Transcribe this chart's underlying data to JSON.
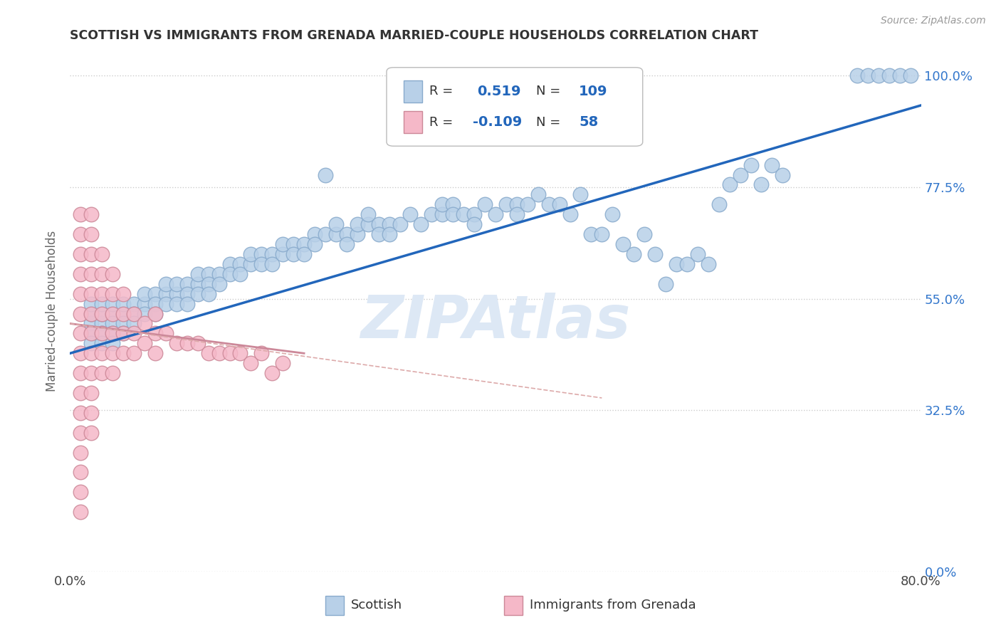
{
  "title": "SCOTTISH VS IMMIGRANTS FROM GRENADA MARRIED-COUPLE HOUSEHOLDS CORRELATION CHART",
  "source": "Source: ZipAtlas.com",
  "ylabel": "Married-couple Households",
  "xlim": [
    0.0,
    0.8
  ],
  "ylim": [
    0.0,
    1.05
  ],
  "xtick_positions": [
    0.0,
    0.8
  ],
  "xtick_labels": [
    "0.0%",
    "80.0%"
  ],
  "ytick_values": [
    0.0,
    0.325,
    0.55,
    0.775,
    1.0
  ],
  "ytick_labels": [
    "0.0%",
    "32.5%",
    "55.0%",
    "77.5%",
    "100.0%"
  ],
  "scatter_blue_color": "#b8d0e8",
  "scatter_blue_edge": "#88aacc",
  "scatter_pink_color": "#f5b8c8",
  "scatter_pink_edge": "#cc8898",
  "line_blue_color": "#2266bb",
  "line_pink_color": "#cc8899",
  "watermark": "ZIPAtlas",
  "watermark_color": "#dde8f5",
  "blue_scatter": [
    [
      0.02,
      0.5
    ],
    [
      0.02,
      0.52
    ],
    [
      0.02,
      0.54
    ],
    [
      0.02,
      0.48
    ],
    [
      0.02,
      0.46
    ],
    [
      0.03,
      0.5
    ],
    [
      0.03,
      0.52
    ],
    [
      0.03,
      0.48
    ],
    [
      0.03,
      0.46
    ],
    [
      0.03,
      0.54
    ],
    [
      0.04,
      0.52
    ],
    [
      0.04,
      0.5
    ],
    [
      0.04,
      0.48
    ],
    [
      0.04,
      0.54
    ],
    [
      0.04,
      0.46
    ],
    [
      0.05,
      0.52
    ],
    [
      0.05,
      0.54
    ],
    [
      0.05,
      0.5
    ],
    [
      0.05,
      0.48
    ],
    [
      0.06,
      0.54
    ],
    [
      0.06,
      0.52
    ],
    [
      0.06,
      0.5
    ],
    [
      0.07,
      0.54
    ],
    [
      0.07,
      0.56
    ],
    [
      0.07,
      0.52
    ],
    [
      0.08,
      0.56
    ],
    [
      0.08,
      0.54
    ],
    [
      0.08,
      0.52
    ],
    [
      0.09,
      0.56
    ],
    [
      0.09,
      0.54
    ],
    [
      0.09,
      0.58
    ],
    [
      0.1,
      0.56
    ],
    [
      0.1,
      0.58
    ],
    [
      0.1,
      0.54
    ],
    [
      0.11,
      0.58
    ],
    [
      0.11,
      0.56
    ],
    [
      0.11,
      0.54
    ],
    [
      0.12,
      0.58
    ],
    [
      0.12,
      0.56
    ],
    [
      0.12,
      0.6
    ],
    [
      0.13,
      0.6
    ],
    [
      0.13,
      0.58
    ],
    [
      0.13,
      0.56
    ],
    [
      0.14,
      0.6
    ],
    [
      0.14,
      0.58
    ],
    [
      0.15,
      0.62
    ],
    [
      0.15,
      0.6
    ],
    [
      0.16,
      0.62
    ],
    [
      0.16,
      0.6
    ],
    [
      0.17,
      0.62
    ],
    [
      0.17,
      0.64
    ],
    [
      0.18,
      0.64
    ],
    [
      0.18,
      0.62
    ],
    [
      0.19,
      0.64
    ],
    [
      0.19,
      0.62
    ],
    [
      0.2,
      0.64
    ],
    [
      0.2,
      0.66
    ],
    [
      0.21,
      0.66
    ],
    [
      0.21,
      0.64
    ],
    [
      0.22,
      0.66
    ],
    [
      0.22,
      0.64
    ],
    [
      0.23,
      0.68
    ],
    [
      0.23,
      0.66
    ],
    [
      0.24,
      0.68
    ],
    [
      0.24,
      0.8
    ],
    [
      0.25,
      0.68
    ],
    [
      0.25,
      0.7
    ],
    [
      0.26,
      0.68
    ],
    [
      0.26,
      0.66
    ],
    [
      0.27,
      0.68
    ],
    [
      0.27,
      0.7
    ],
    [
      0.28,
      0.7
    ],
    [
      0.28,
      0.72
    ],
    [
      0.29,
      0.7
    ],
    [
      0.29,
      0.68
    ],
    [
      0.3,
      0.7
    ],
    [
      0.3,
      0.68
    ],
    [
      0.31,
      0.7
    ],
    [
      0.32,
      0.72
    ],
    [
      0.33,
      0.7
    ],
    [
      0.34,
      0.72
    ],
    [
      0.35,
      0.72
    ],
    [
      0.35,
      0.74
    ],
    [
      0.36,
      0.74
    ],
    [
      0.36,
      0.72
    ],
    [
      0.37,
      0.72
    ],
    [
      0.38,
      0.72
    ],
    [
      0.38,
      0.7
    ],
    [
      0.39,
      0.74
    ],
    [
      0.4,
      0.72
    ],
    [
      0.41,
      0.74
    ],
    [
      0.42,
      0.74
    ],
    [
      0.42,
      0.72
    ],
    [
      0.43,
      0.74
    ],
    [
      0.44,
      0.76
    ],
    [
      0.45,
      0.74
    ],
    [
      0.46,
      0.74
    ],
    [
      0.47,
      0.72
    ],
    [
      0.48,
      0.76
    ],
    [
      0.49,
      0.68
    ],
    [
      0.5,
      0.68
    ],
    [
      0.51,
      0.72
    ],
    [
      0.52,
      0.66
    ],
    [
      0.53,
      0.64
    ],
    [
      0.54,
      0.68
    ],
    [
      0.55,
      0.64
    ],
    [
      0.56,
      0.58
    ],
    [
      0.57,
      0.62
    ],
    [
      0.58,
      0.62
    ],
    [
      0.59,
      0.64
    ],
    [
      0.6,
      0.62
    ],
    [
      0.61,
      0.74
    ],
    [
      0.62,
      0.78
    ],
    [
      0.63,
      0.8
    ],
    [
      0.64,
      0.82
    ],
    [
      0.65,
      0.78
    ],
    [
      0.66,
      0.82
    ],
    [
      0.67,
      0.8
    ],
    [
      0.74,
      1.0
    ],
    [
      0.75,
      1.0
    ],
    [
      0.76,
      1.0
    ],
    [
      0.77,
      1.0
    ],
    [
      0.78,
      1.0
    ],
    [
      0.79,
      1.0
    ]
  ],
  "pink_scatter": [
    [
      0.01,
      0.72
    ],
    [
      0.01,
      0.68
    ],
    [
      0.01,
      0.64
    ],
    [
      0.01,
      0.6
    ],
    [
      0.01,
      0.56
    ],
    [
      0.01,
      0.52
    ],
    [
      0.01,
      0.48
    ],
    [
      0.01,
      0.44
    ],
    [
      0.01,
      0.4
    ],
    [
      0.01,
      0.36
    ],
    [
      0.01,
      0.32
    ],
    [
      0.01,
      0.28
    ],
    [
      0.01,
      0.24
    ],
    [
      0.01,
      0.2
    ],
    [
      0.01,
      0.16
    ],
    [
      0.01,
      0.12
    ],
    [
      0.02,
      0.72
    ],
    [
      0.02,
      0.68
    ],
    [
      0.02,
      0.64
    ],
    [
      0.02,
      0.6
    ],
    [
      0.02,
      0.56
    ],
    [
      0.02,
      0.52
    ],
    [
      0.02,
      0.48
    ],
    [
      0.02,
      0.44
    ],
    [
      0.02,
      0.4
    ],
    [
      0.02,
      0.36
    ],
    [
      0.02,
      0.32
    ],
    [
      0.02,
      0.28
    ],
    [
      0.03,
      0.64
    ],
    [
      0.03,
      0.6
    ],
    [
      0.03,
      0.56
    ],
    [
      0.03,
      0.52
    ],
    [
      0.03,
      0.48
    ],
    [
      0.03,
      0.44
    ],
    [
      0.03,
      0.4
    ],
    [
      0.04,
      0.6
    ],
    [
      0.04,
      0.56
    ],
    [
      0.04,
      0.52
    ],
    [
      0.04,
      0.48
    ],
    [
      0.04,
      0.44
    ],
    [
      0.04,
      0.4
    ],
    [
      0.05,
      0.56
    ],
    [
      0.05,
      0.52
    ],
    [
      0.05,
      0.48
    ],
    [
      0.05,
      0.44
    ],
    [
      0.06,
      0.52
    ],
    [
      0.06,
      0.48
    ],
    [
      0.06,
      0.44
    ],
    [
      0.07,
      0.5
    ],
    [
      0.07,
      0.46
    ],
    [
      0.08,
      0.48
    ],
    [
      0.08,
      0.44
    ],
    [
      0.09,
      0.48
    ],
    [
      0.1,
      0.46
    ],
    [
      0.11,
      0.46
    ],
    [
      0.12,
      0.46
    ],
    [
      0.13,
      0.44
    ],
    [
      0.14,
      0.44
    ],
    [
      0.15,
      0.44
    ],
    [
      0.16,
      0.44
    ],
    [
      0.17,
      0.42
    ],
    [
      0.18,
      0.44
    ],
    [
      0.19,
      0.4
    ],
    [
      0.2,
      0.42
    ],
    [
      0.08,
      0.52
    ]
  ],
  "blue_line_x": [
    0.0,
    0.8
  ],
  "blue_line_y": [
    0.44,
    0.94
  ],
  "pink_line_x": [
    0.0,
    0.22
  ],
  "pink_line_y": [
    0.5,
    0.44
  ],
  "pink_dash_line_x": [
    0.0,
    0.5
  ],
  "pink_dash_line_y": [
    0.5,
    0.35
  ],
  "background_color": "#ffffff",
  "grid_color": "#cccccc"
}
